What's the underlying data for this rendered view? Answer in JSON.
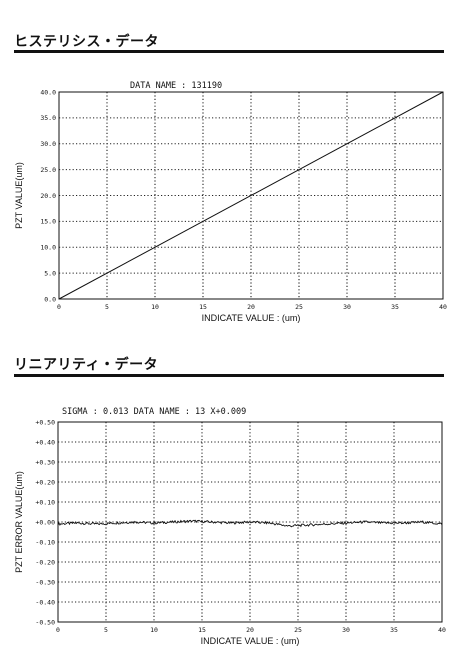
{
  "sections": {
    "hysteresis_title": "ヒステリシス・データ",
    "linearity_title": "リニアリティ・データ"
  },
  "chart_data": [
    {
      "type": "line",
      "header": "DATA NAME : 131190",
      "xlabel": "INDICATE VALUE : (um)",
      "ylabel": "PZT VALUE(um)",
      "xlim": [
        0,
        40
      ],
      "ylim": [
        0,
        40
      ],
      "x_ticks": [
        "0",
        "5",
        "10",
        "15",
        "20",
        "25",
        "30",
        "35",
        "40"
      ],
      "y_ticks": [
        "0.0",
        "5.0",
        "10.0",
        "15.0",
        "20.0",
        "25.0",
        "30.0",
        "35.0",
        "40.0"
      ],
      "grid": true,
      "series": [
        {
          "x": [
            0,
            40
          ],
          "y": [
            0,
            40
          ]
        }
      ]
    },
    {
      "type": "line",
      "header": "SIGMA : 0.013 DATA NAME : 13 X+0.009",
      "xlabel": "INDICATE VALUE : (um)",
      "ylabel": "PZT ERROR VALUE(um)",
      "xlim": [
        0,
        40
      ],
      "ylim": [
        -0.5,
        0.5
      ],
      "x_ticks": [
        "0",
        "5",
        "10",
        "15",
        "20",
        "25",
        "30",
        "35",
        "40"
      ],
      "y_ticks": [
        "-0.50",
        "-0.40",
        "-0.30",
        "-0.20",
        "-0.10",
        "+0.00",
        "+0.10",
        "+0.20",
        "+0.30",
        "+0.40",
        "+0.50"
      ],
      "grid": true,
      "series": [
        {
          "x": [
            0,
            2,
            4,
            6,
            8,
            10,
            12,
            14,
            16,
            18,
            20,
            22,
            24,
            26,
            28,
            30,
            32,
            34,
            36,
            38,
            40
          ],
          "y": [
            -0.01,
            -0.005,
            -0.01,
            -0.005,
            0.0,
            -0.005,
            0.0,
            0.005,
            0.0,
            -0.005,
            0.0,
            -0.005,
            -0.02,
            -0.015,
            -0.01,
            -0.005,
            0.0,
            -0.005,
            -0.005,
            0.0,
            -0.01
          ]
        }
      ]
    }
  ]
}
